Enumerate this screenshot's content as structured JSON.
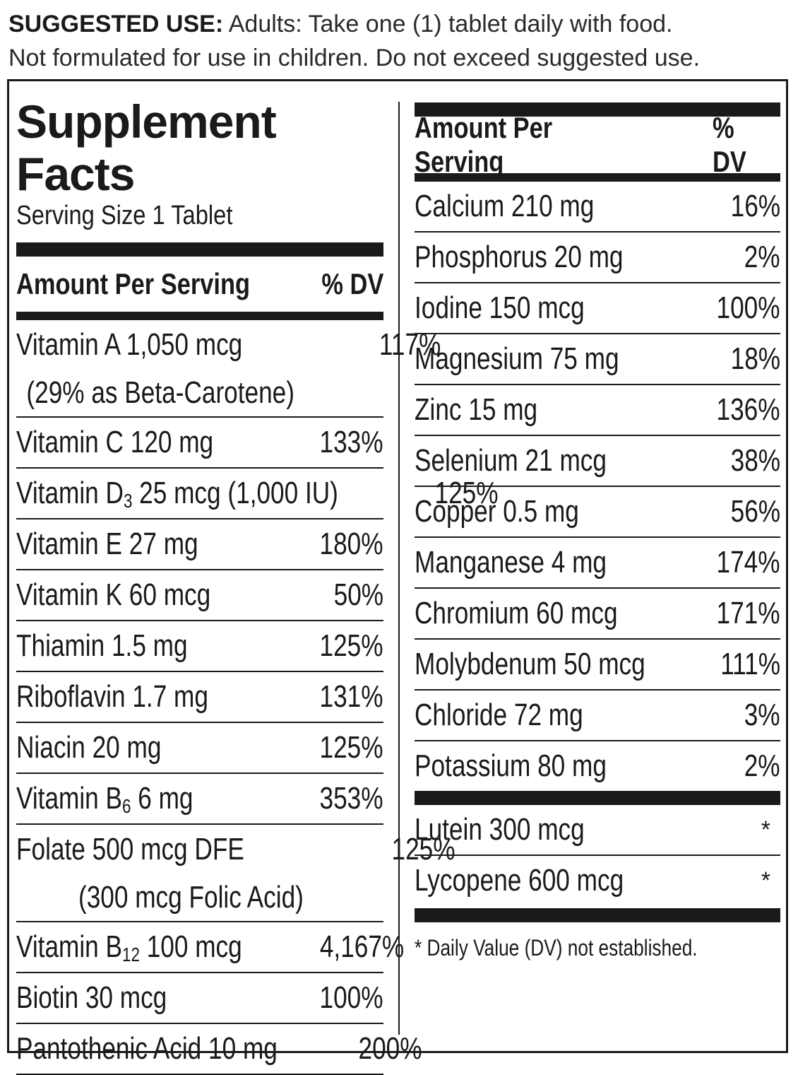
{
  "suggested_use": {
    "label": "SUGGESTED USE:",
    "line1": "Adults: Take one (1) tablet daily with food.",
    "line2": "Not formulated for use in children. Do not exceed suggested use."
  },
  "facts": {
    "title": "Supplement Facts",
    "serving_size": "Serving Size 1 Tablet",
    "header_amount": "Amount Per Serving",
    "header_dv": "% DV",
    "left_rows": [
      {
        "name": "Vitamin A 1,050 mcg",
        "sub": "(29% as Beta-Carotene)",
        "dv": "117%"
      },
      {
        "name": "Vitamin C 120 mg",
        "dv": "133%"
      },
      {
        "name_pre": "Vitamin D",
        "name_sub": "3",
        "name_post": " 25 mcg (1,000 IU)",
        "dv": "125%"
      },
      {
        "name": "Vitamin E 27 mg",
        "dv": "180%"
      },
      {
        "name": "Vitamin K 60 mcg",
        "dv": "50%"
      },
      {
        "name": "Thiamin 1.5 mg",
        "dv": "125%"
      },
      {
        "name": "Riboflavin 1.7 mg",
        "dv": "131%"
      },
      {
        "name": "Niacin 20 mg",
        "dv": "125%"
      },
      {
        "name_pre": "Vitamin B",
        "name_sub": "6",
        "name_post": " 6 mg",
        "dv": "353%"
      },
      {
        "name": "Folate 500 mcg DFE",
        "sub": "(300 mcg Folic Acid)",
        "dv": "125%"
      },
      {
        "name_pre": "Vitamin B",
        "name_sub": "12",
        "name_post": " 100 mcg",
        "dv": "4,167%"
      },
      {
        "name": "Biotin 30 mcg",
        "dv": "100%"
      },
      {
        "name": "Pantothenic Acid 10 mg",
        "dv": "200%"
      }
    ],
    "right_rows": [
      {
        "name": "Calcium 210 mg",
        "dv": "16%"
      },
      {
        "name": "Phosphorus 20 mg",
        "dv": "2%"
      },
      {
        "name": "Iodine 150 mcg",
        "dv": "100%"
      },
      {
        "name": "Magnesium 75 mg",
        "dv": "18%"
      },
      {
        "name": "Zinc 15 mg",
        "dv": "136%"
      },
      {
        "name": "Selenium 21 mcg",
        "dv": "38%"
      },
      {
        "name": "Copper 0.5 mg",
        "dv": "56%"
      },
      {
        "name": "Manganese 4 mg",
        "dv": "174%"
      },
      {
        "name": "Chromium 60 mcg",
        "dv": "171%"
      },
      {
        "name": "Molybdenum 50 mcg",
        "dv": "111%"
      },
      {
        "name": "Chloride 72 mg",
        "dv": "3%"
      },
      {
        "name": "Potassium 80 mg",
        "dv": "2%"
      }
    ],
    "other_rows": [
      {
        "name": "Lutein 300 mcg",
        "dv": "*"
      },
      {
        "name": "Lycopene 600 mcg",
        "dv": "*"
      }
    ],
    "footnote": "* Daily Value (DV) not established."
  }
}
